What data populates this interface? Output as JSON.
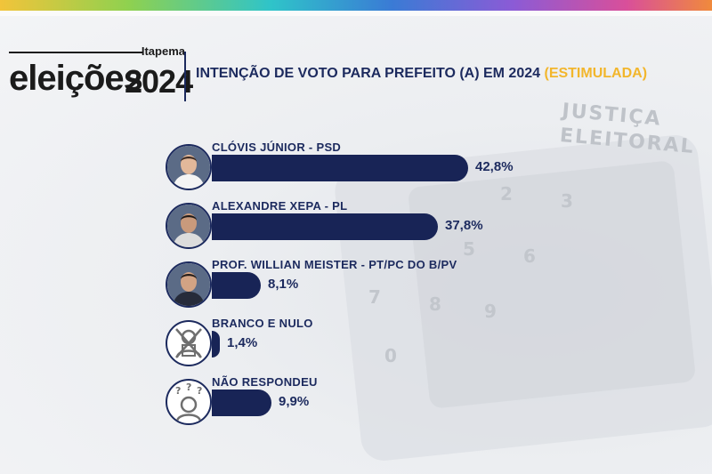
{
  "header": {
    "logo_city": "Itapema",
    "logo_word": "eleições",
    "logo_year": "2024",
    "title_main": "INTENÇÃO DE VOTO PARA PREFEITO (A) EM 2024",
    "title_accent": "(ESTIMULADA)"
  },
  "background": {
    "urn_text_1": "JUSTIÇA",
    "urn_text_2": "ELEITORAL",
    "keys": [
      "2",
      "3",
      "5",
      "6",
      "7",
      "8",
      "9",
      "0"
    ]
  },
  "colors": {
    "bar": "#182456",
    "text": "#1c2a5e",
    "accent": "#f2b62c"
  },
  "chart_data": {
    "type": "bar",
    "orientation": "horizontal",
    "title": "INTENÇÃO DE VOTO PARA PREFEITO (A) EM 2024 (ESTIMULADA)",
    "categories": [
      "CLÓVIS JÚNIOR - PSD",
      "ALEXANDRE XEPA - PL",
      "PROF. WILLIAN MEISTER - PT/PC DO B/PV",
      "BRANCO E NULO",
      "NÃO RESPONDEU"
    ],
    "values": [
      42.8,
      37.8,
      8.1,
      1.4,
      9.9
    ],
    "value_labels": [
      "42,8%",
      "37,8%",
      "8,1%",
      "1,4%",
      "9,9%"
    ],
    "icons": [
      "candidate-photo",
      "candidate-photo",
      "candidate-photo",
      "crossed-out-voter-icon",
      "question-marks-person-icon"
    ],
    "xlim": [
      0,
      45
    ],
    "grid": false,
    "legend": "none"
  }
}
